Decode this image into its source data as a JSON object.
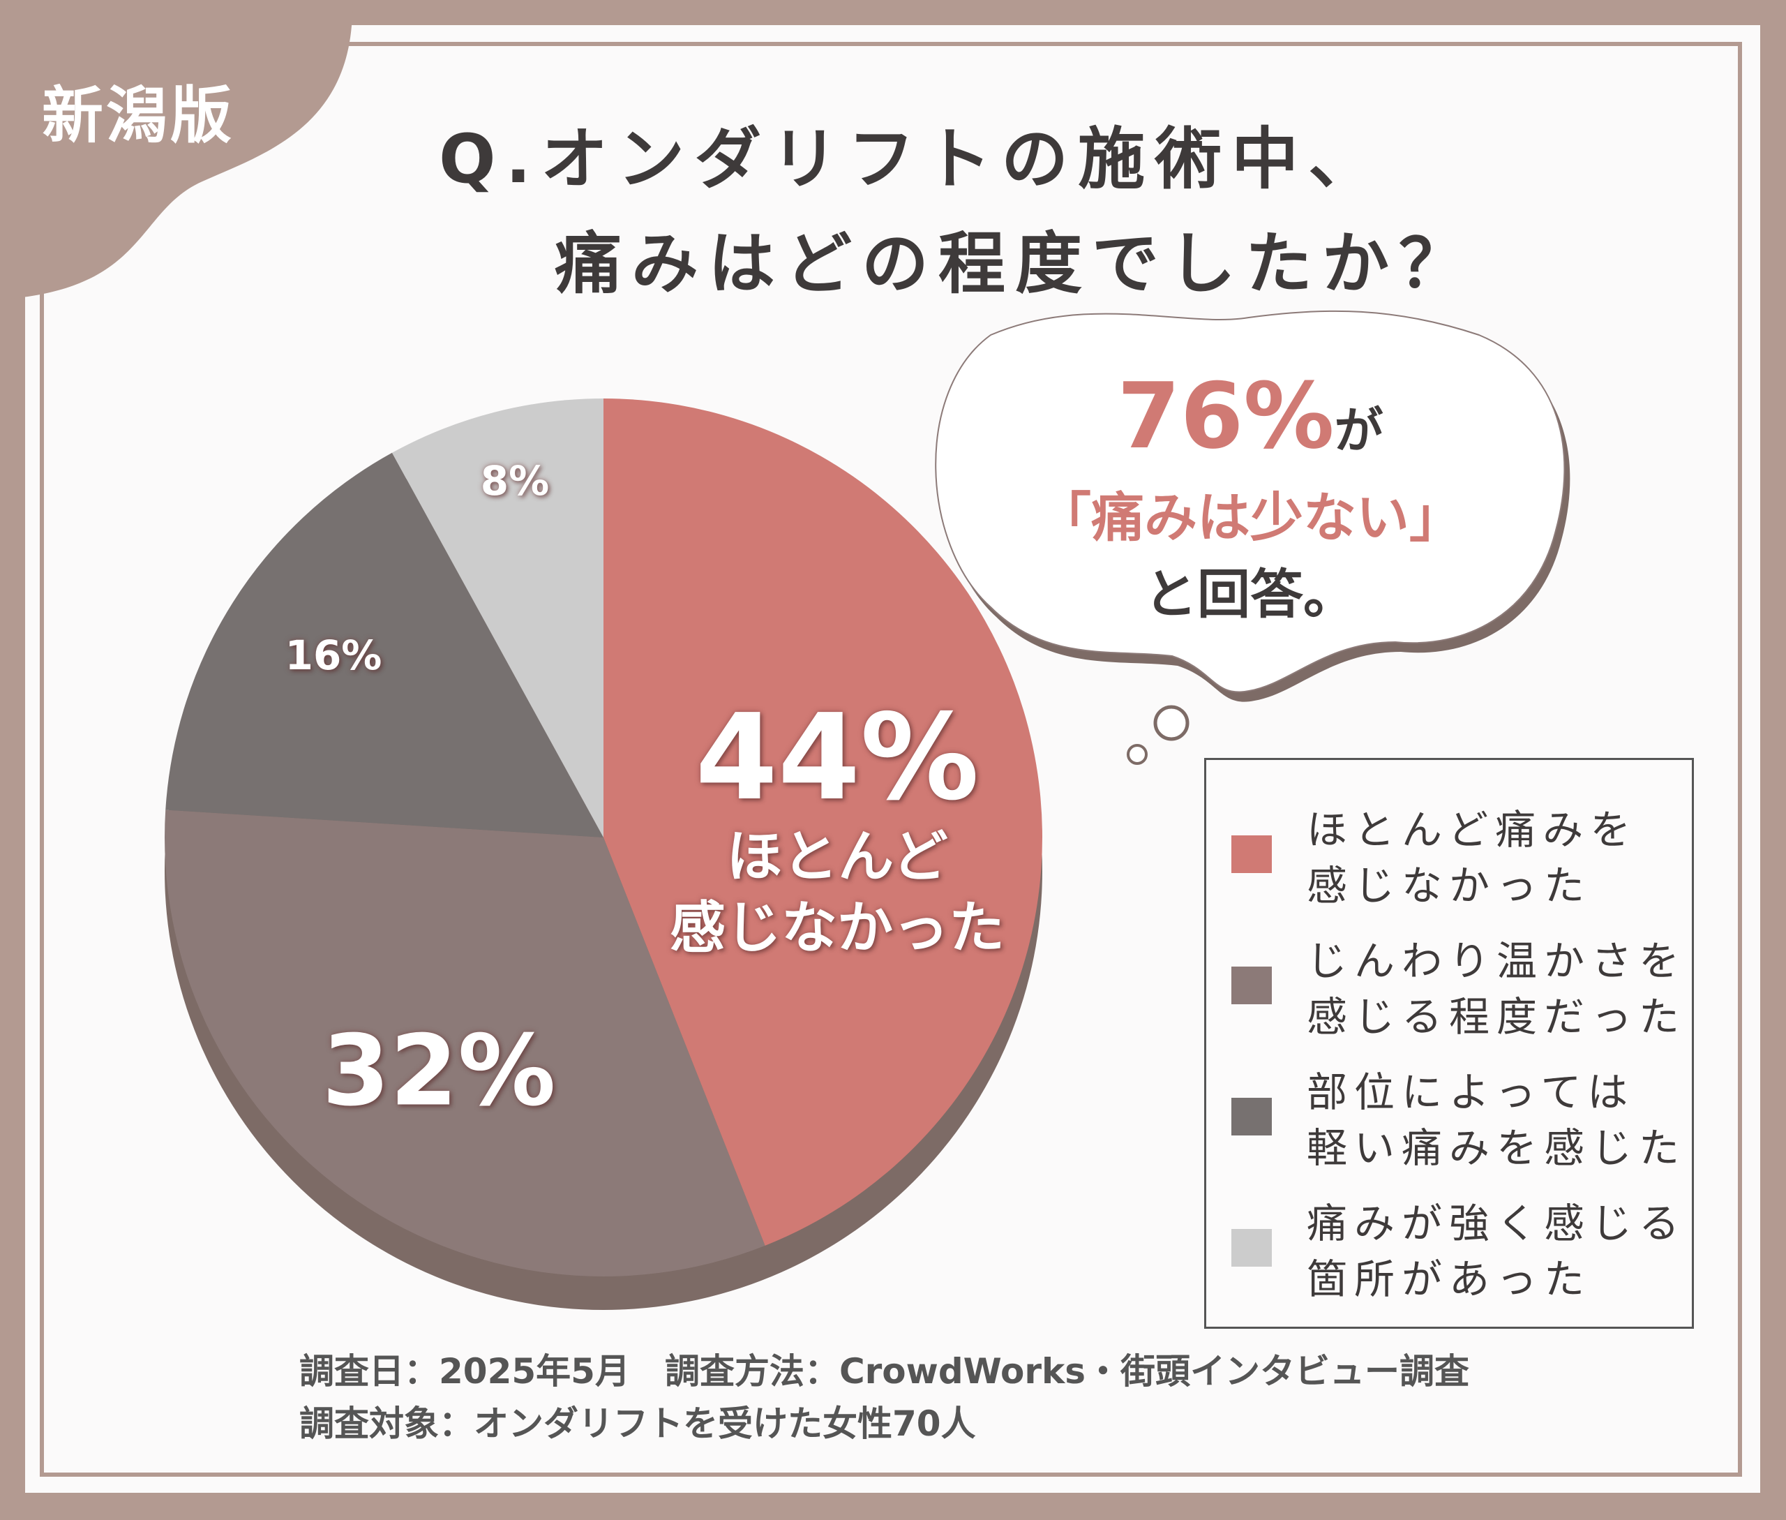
{
  "badge": "新潟版",
  "title": {
    "line1": "Q.オンダリフトの施術中、",
    "line2": "痛みはどの程度でしたか？"
  },
  "callout": {
    "percent": "76%",
    "suffix": "が",
    "quote": "「痛みは少ない」",
    "end": "と回答。"
  },
  "chart_data": {
    "type": "pie",
    "categories": [
      "ほとんど痛みを感じなかった",
      "じんわり温かさを感じる程度だった",
      "部位によっては軽い痛みを感じた",
      "痛みが強く感じる箇所があった"
    ],
    "values": [
      44,
      32,
      16,
      8
    ],
    "colors": [
      "#d07a74",
      "#8c7a78",
      "#777170",
      "#cccccc"
    ],
    "data_labels": [
      "44%",
      "32%",
      "16%",
      "8%"
    ],
    "main_label": {
      "line1": "ほとんど",
      "line2": "感じなかった"
    },
    "legend": [
      {
        "line1": "ほとんど痛みを",
        "line2": "感じなかった"
      },
      {
        "line1": "じんわり温かさを",
        "line2": "感じる程度だった"
      },
      {
        "line1": "部位によっては",
        "line2": "軽い痛みを感じた"
      },
      {
        "line1": "痛みが強く感じる",
        "line2": "箇所があった"
      }
    ],
    "legend_position": "right"
  },
  "footer": {
    "line1": "調査日：2025年5月　調査方法：CrowdWorks・街頭インタビュー調査",
    "line2": "調査対象：オンダリフトを受けた女性70人"
  },
  "colors": {
    "accent": "#d07a74",
    "background": "#b39a91",
    "text": "#3e3a3a"
  }
}
